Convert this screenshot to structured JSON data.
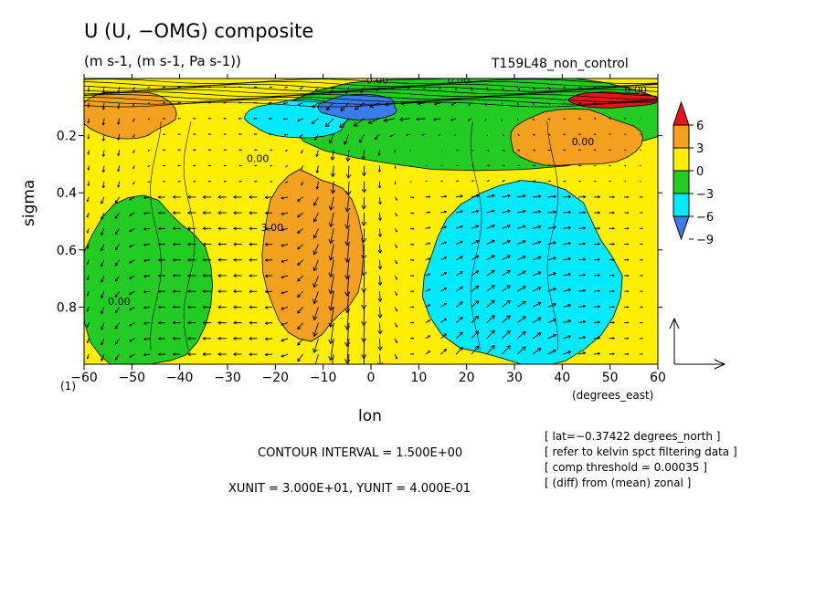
{
  "header": {
    "title": "U (U, −OMG) composite",
    "units": "(m s-1, (m s-1, Pa s-1))",
    "run_name": "T159L48_non_control"
  },
  "axis_extra": {
    "x_unit_label": "(degrees_east)",
    "frame_label": "(1)"
  },
  "footer": {
    "contour_interval": "CONTOUR INTERVAL = 1.500E+00",
    "vector_units": "XUNIT = 3.000E+01, YUNIT = 4.000E-01",
    "notes": [
      "[ lat=−0.37422 degrees_north ]",
      "[ refer to kelvin spct filtering data ]",
      "[ comp threshold = 0.00035 ]",
      "[ (diff) from (mean) zonal ]"
    ]
  },
  "colors": {
    "red": "#e8141c",
    "orange": "#f2a01e",
    "yellow": "#ffee00",
    "green": "#22cc22",
    "cyan": "#00eaff",
    "blue": "#3a7de8",
    "contour": "#000000"
  },
  "chart_data": {
    "type": "heatmap",
    "xlabel": "lon",
    "ylabel": "sigma",
    "xlim": [
      -60,
      60
    ],
    "ylim": [
      1.0,
      0.0
    ],
    "x_ticks": [
      -60,
      -50,
      -40,
      -30,
      -20,
      -10,
      0,
      10,
      20,
      30,
      40,
      50,
      60
    ],
    "y_ticks": [
      0.2,
      0.4,
      0.6,
      0.8
    ],
    "contour_interval": 1.5,
    "colorbar": {
      "labels": [
        "6",
        "3",
        "0",
        "−3",
        "−6",
        "−9"
      ],
      "levels": [
        6,
        3,
        0,
        -3,
        -6,
        -9
      ],
      "bins": [
        {
          "min": 6,
          "max": null,
          "color": "#e8141c"
        },
        {
          "min": 3,
          "max": 6,
          "color": "#f2a01e"
        },
        {
          "min": 0,
          "max": 3,
          "color": "#ffee00"
        },
        {
          "min": -3,
          "max": 0,
          "color": "#22cc22"
        },
        {
          "min": -6,
          "max": -3,
          "color": "#00eaff"
        },
        {
          "min": null,
          "max": -6,
          "color": "#3a7de8"
        }
      ]
    },
    "regions": [
      {
        "level": "0 to 3",
        "lon": [
          -60,
          60
        ],
        "sigma": [
          0.0,
          1.0
        ]
      },
      {
        "level": "-3 to 0",
        "lon": [
          -60,
          -35
        ],
        "sigma": [
          0.45,
          1.0
        ]
      },
      {
        "level": "3 to 6",
        "lon": [
          -22,
          -3
        ],
        "sigma": [
          0.35,
          0.88
        ]
      },
      {
        "level": "-3 to 0",
        "lon": [
          -15,
          60
        ],
        "sigma": [
          0.0,
          0.3
        ]
      },
      {
        "level": "-6 to -3",
        "lon": [
          -25,
          -5
        ],
        "sigma": [
          0.08,
          0.2
        ]
      },
      {
        "level": "< -6",
        "lon": [
          -10,
          5
        ],
        "sigma": [
          0.06,
          0.14
        ]
      },
      {
        "level": "-6 to -3",
        "lon": [
          13,
          50
        ],
        "sigma": [
          0.4,
          0.98
        ]
      },
      {
        "level": "3 to 6",
        "lon": [
          30,
          55
        ],
        "sigma": [
          0.12,
          0.3
        ]
      },
      {
        "level": "> 6",
        "lon": [
          42,
          59
        ],
        "sigma": [
          0.05,
          0.1
        ]
      },
      {
        "level": "3 to 6",
        "lon": [
          -60,
          -42
        ],
        "sigma": [
          0.05,
          0.2
        ]
      }
    ],
    "contour_labels": [
      "0.00",
      "0.00",
      "0.00",
      "3.00",
      "0.00",
      "0.00",
      "0.00"
    ],
    "reference_vector": {
      "x_unit": 30.0,
      "y_unit": 0.4
    }
  }
}
